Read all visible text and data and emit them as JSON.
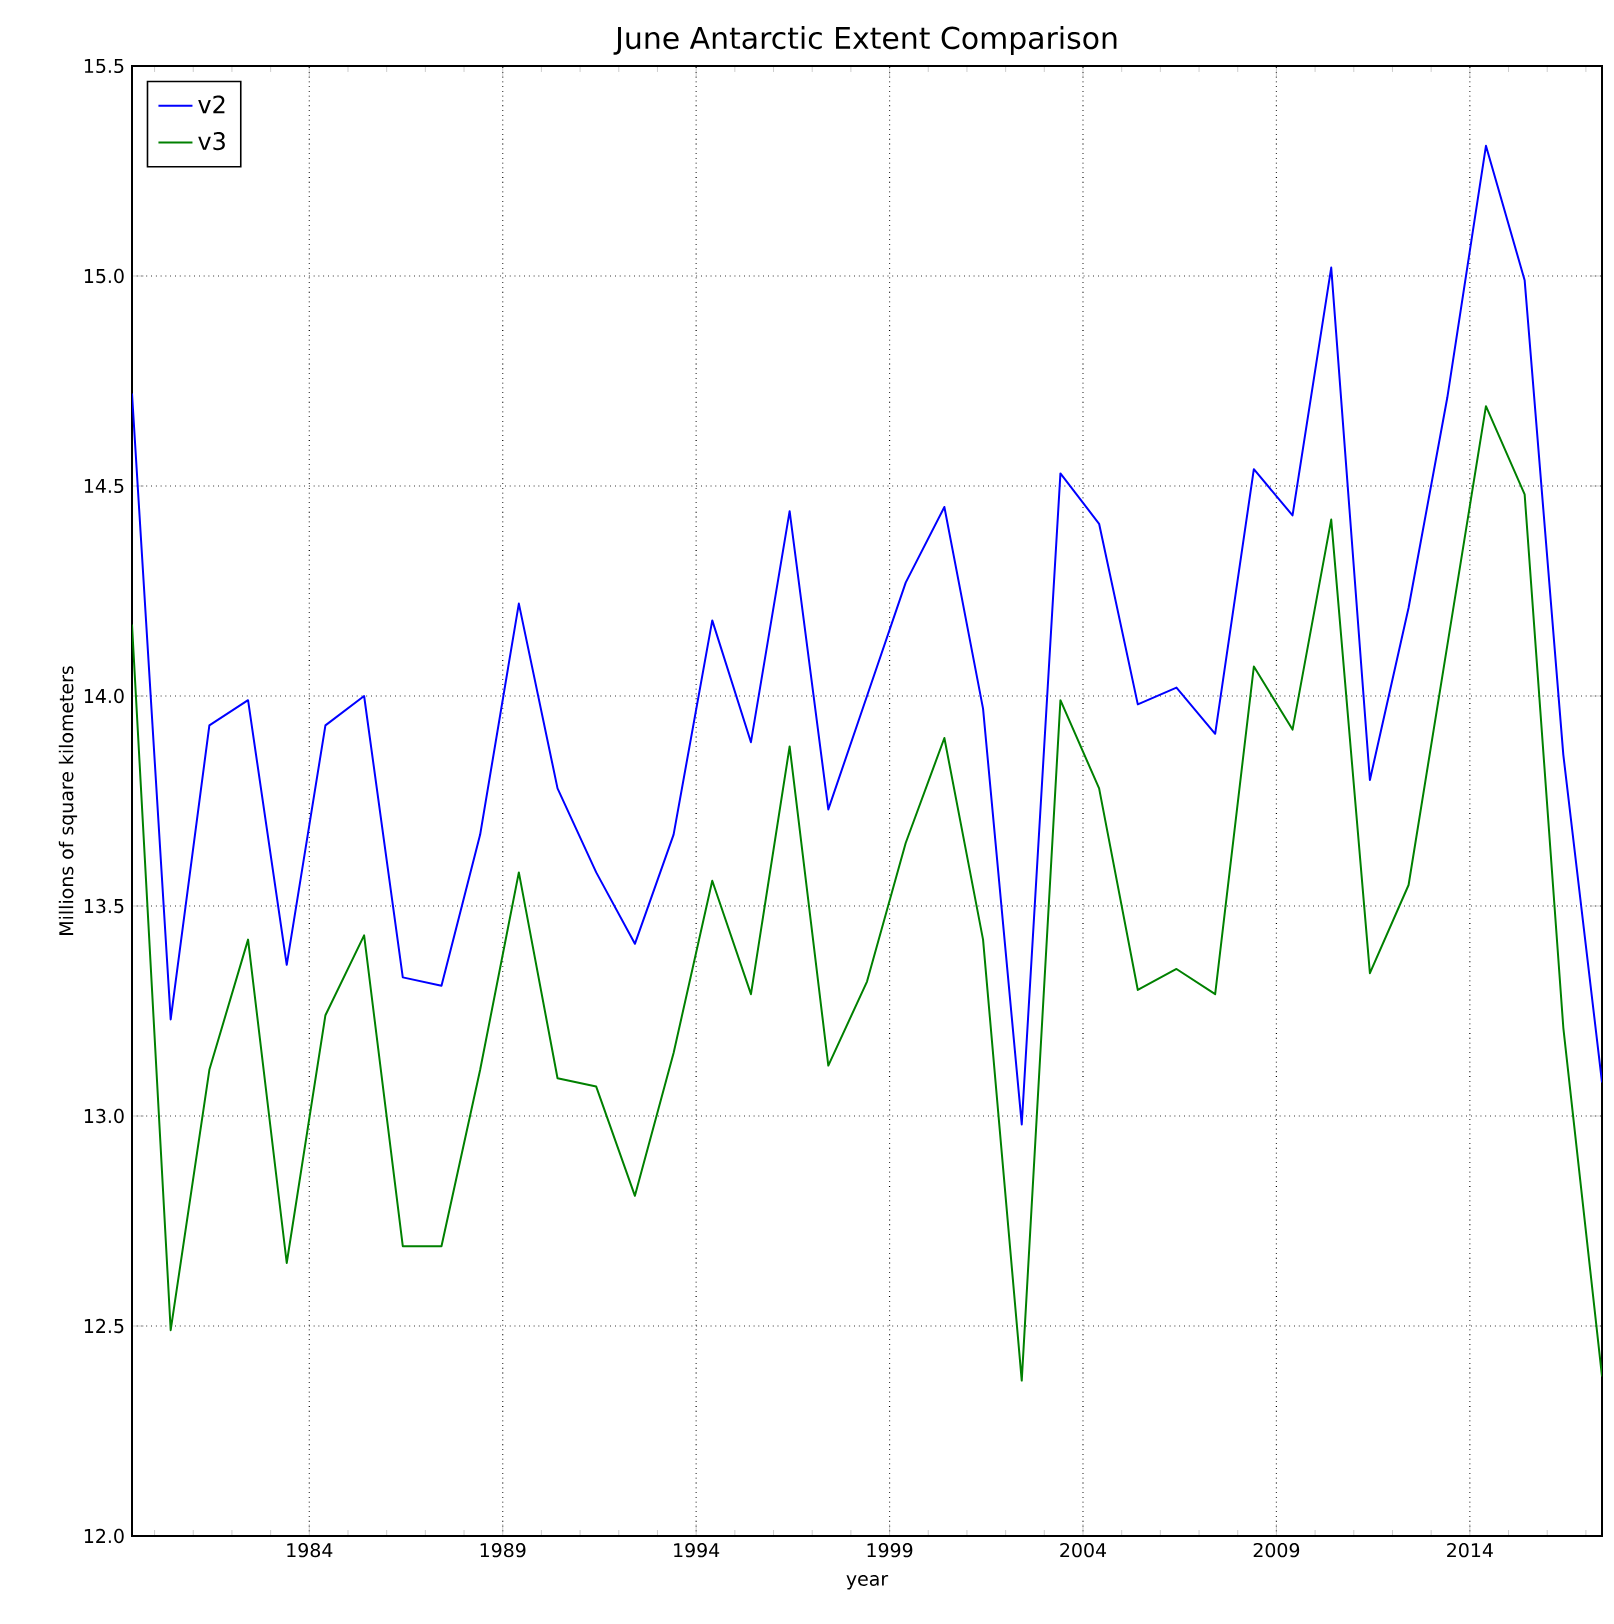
{
  "chart_data": {
    "type": "line",
    "title": "June Antarctic Extent Comparison",
    "xlabel": "year",
    "ylabel": "Millions of square kilometers",
    "x": [
      1979.4167,
      1980.4167,
      1981.4167,
      1982.4167,
      1983.4167,
      1984.4167,
      1985.4167,
      1986.4167,
      1987.4167,
      1988.4167,
      1989.4167,
      1990.4167,
      1991.4167,
      1992.4167,
      1993.4167,
      1994.4167,
      1995.4167,
      1996.4167,
      1997.4167,
      1998.4167,
      1999.4167,
      2000.4167,
      2001.4167,
      2002.4167,
      2003.4167,
      2004.4167,
      2005.4167,
      2006.4167,
      2007.4167,
      2008.4167,
      2009.4167,
      2010.4167,
      2011.4167,
      2012.4167,
      2013.4167,
      2014.4167,
      2015.4167,
      2016.4167,
      2017.4167
    ],
    "series": [
      {
        "name": "v2",
        "color": "#0000ff",
        "values": [
          14.72,
          13.23,
          13.93,
          13.99,
          13.36,
          13.93,
          14.0,
          13.33,
          13.31,
          13.67,
          14.22,
          13.78,
          13.58,
          13.41,
          13.67,
          14.18,
          13.89,
          14.44,
          13.73,
          14.0,
          14.27,
          14.45,
          13.97,
          12.98,
          14.53,
          14.41,
          13.98,
          14.02,
          13.91,
          14.54,
          14.43,
          15.02,
          13.8,
          14.21,
          14.71,
          15.31,
          14.99,
          13.86,
          13.08
        ]
      },
      {
        "name": "v3",
        "color": "#008000",
        "values": [
          14.17,
          12.49,
          13.11,
          13.42,
          12.65,
          13.24,
          13.43,
          12.69,
          12.69,
          13.11,
          13.58,
          13.09,
          13.07,
          12.81,
          13.15,
          13.56,
          13.29,
          13.88,
          13.12,
          13.32,
          13.65,
          13.9,
          13.42,
          12.37,
          13.99,
          13.78,
          13.3,
          13.35,
          13.29,
          14.07,
          13.92,
          14.42,
          13.34,
          13.55,
          14.12,
          14.69,
          14.48,
          13.21,
          12.38
        ]
      }
    ],
    "xlim": [
      1979.4167,
      2017.4167
    ],
    "xticks": [
      {
        "value": 1980,
        "label": null
      },
      {
        "value": 1981,
        "label": null
      },
      {
        "value": 1982,
        "label": null
      },
      {
        "value": 1983,
        "label": null
      },
      1984,
      {
        "value": 1985,
        "label": null
      },
      {
        "value": 1986,
        "label": null
      },
      {
        "value": 1987,
        "label": null
      },
      {
        "value": 1988,
        "label": null
      },
      1989,
      {
        "value": 1990,
        "label": null
      },
      {
        "value": 1991,
        "label": null
      },
      {
        "value": 1992,
        "label": null
      },
      {
        "value": 1993,
        "label": null
      },
      1994,
      {
        "value": 1995,
        "label": null
      },
      {
        "value": 1996,
        "label": null
      },
      {
        "value": 1997,
        "label": null
      },
      {
        "value": 1998,
        "label": null
      },
      1999,
      {
        "value": 2000,
        "label": null
      },
      {
        "value": 2001,
        "label": null
      },
      {
        "value": 2002,
        "label": null
      },
      {
        "value": 2003,
        "label": null
      },
      2004,
      {
        "value": 2005,
        "label": null
      },
      {
        "value": 2006,
        "label": null
      },
      {
        "value": 2007,
        "label": null
      },
      {
        "value": 2008,
        "label": null
      },
      2009,
      {
        "value": 2010,
        "label": null
      },
      {
        "value": 2011,
        "label": null
      },
      {
        "value": 2012,
        "label": null
      },
      {
        "value": 2013,
        "label": null
      },
      2014,
      {
        "value": 2015,
        "label": null
      },
      {
        "value": 2016,
        "label": null
      },
      {
        "value": 2017,
        "label": null
      }
    ],
    "ylim": [
      12,
      15.5
    ],
    "yticks": [
      {
        "value": 12,
        "label": "12.0"
      },
      {
        "value": 12.5,
        "label": "12.5"
      },
      {
        "value": 13,
        "label": "13.0"
      },
      {
        "value": 13.5,
        "label": "13.5"
      },
      {
        "value": 14,
        "label": "14.0"
      },
      {
        "value": 14.5,
        "label": "14.5"
      },
      {
        "value": 15,
        "label": "15.0"
      },
      {
        "value": 15.5,
        "label": "15.5"
      }
    ],
    "grid": true,
    "legend": "top left",
    "marker": "none",
    "line_style": "solid"
  }
}
